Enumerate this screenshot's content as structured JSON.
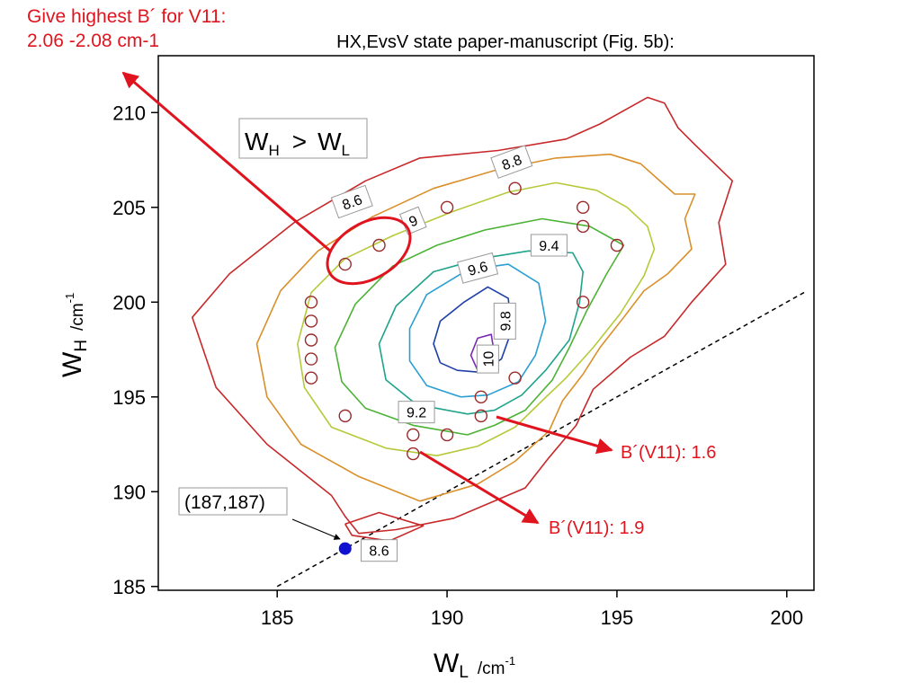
{
  "chart_data": {
    "type": "contour",
    "title": "HX,EvsV state paper-manuscript (Fig. 5b):",
    "xlim": [
      181.5,
      200.8
    ],
    "ylim": [
      184.8,
      213.0
    ],
    "x_axis": {
      "label_main": "W",
      "label_sub": "L",
      "unit": "/cm",
      "unit_exp": "-1",
      "ticks": [
        {
          "value": 185,
          "label": "185"
        },
        {
          "value": 190,
          "label": "190"
        },
        {
          "value": 195,
          "label": "195"
        },
        {
          "value": 200,
          "label": "200"
        }
      ]
    },
    "y_axis": {
      "label_main": "W",
      "label_sub": "H",
      "unit": "/cm",
      "unit_exp": "-1",
      "ticks": [
        {
          "value": 185,
          "label": "185"
        },
        {
          "value": 190,
          "label": "190"
        },
        {
          "value": 195,
          "label": "195"
        },
        {
          "value": 200,
          "label": "200"
        },
        {
          "value": 205,
          "label": "205"
        },
        {
          "value": 210,
          "label": "210"
        }
      ]
    },
    "contours": [
      {
        "level": 8.6,
        "color": "#c8282a",
        "points": [
          [
            186.6,
            189.8
          ],
          [
            184.7,
            192.5
          ],
          [
            183.2,
            195.5
          ],
          [
            182.5,
            199.2
          ],
          [
            183.6,
            201.5
          ],
          [
            185.5,
            204.2
          ],
          [
            187.6,
            206.4
          ],
          [
            189.2,
            207.6
          ],
          [
            191.5,
            208.0
          ],
          [
            193.5,
            208.6
          ],
          [
            194.5,
            209.4
          ],
          [
            195.9,
            210.8
          ],
          [
            196.4,
            210.5
          ],
          [
            196.8,
            209.2
          ],
          [
            197.3,
            208.3
          ],
          [
            198.4,
            206.4
          ],
          [
            198.0,
            204.2
          ],
          [
            198.2,
            202.0
          ],
          [
            197.2,
            200.0
          ],
          [
            196.4,
            198.2
          ],
          [
            195.4,
            197.1
          ],
          [
            194.3,
            195.4
          ],
          [
            193.8,
            193.5
          ],
          [
            193.0,
            191.8
          ],
          [
            192.3,
            190.2
          ],
          [
            190.2,
            188.6
          ],
          [
            188.5,
            188.0
          ],
          [
            187.4,
            187.8
          ],
          [
            187.0,
            188.7
          ],
          [
            186.6,
            189.8
          ]
        ]
      },
      {
        "level": 8.6,
        "color": "#c8282a",
        "points": [
          [
            187.0,
            188.3
          ],
          [
            188.0,
            188.9
          ],
          [
            189.3,
            188.2
          ],
          [
            188.3,
            187.4
          ],
          [
            187.2,
            187.7
          ],
          [
            187.0,
            188.3
          ]
        ]
      },
      {
        "level": 8.8,
        "color": "#d9902a",
        "points": [
          [
            189.2,
            189.5
          ],
          [
            187.4,
            190.8
          ],
          [
            185.7,
            192.5
          ],
          [
            184.7,
            195.0
          ],
          [
            184.4,
            197.8
          ],
          [
            185.1,
            200.6
          ],
          [
            186.2,
            202.7
          ],
          [
            187.8,
            204.5
          ],
          [
            189.6,
            206.0
          ],
          [
            191.5,
            207.0
          ],
          [
            193.2,
            207.6
          ],
          [
            194.8,
            207.8
          ],
          [
            195.7,
            207.3
          ],
          [
            196.2,
            206.5
          ],
          [
            196.7,
            205.7
          ],
          [
            197.3,
            205.7
          ],
          [
            197.0,
            204.4
          ],
          [
            197.2,
            202.8
          ],
          [
            196.5,
            201.5
          ],
          [
            195.8,
            200.6
          ],
          [
            195.2,
            199.2
          ],
          [
            194.5,
            197.6
          ],
          [
            194.0,
            196.2
          ],
          [
            193.4,
            194.8
          ],
          [
            193.0,
            193.2
          ],
          [
            192.0,
            191.6
          ],
          [
            190.9,
            190.4
          ],
          [
            189.2,
            189.5
          ]
        ]
      },
      {
        "level": 9.0,
        "color": "#b7c93a",
        "points": [
          [
            189.7,
            191.9
          ],
          [
            188.2,
            192.3
          ],
          [
            186.6,
            193.4
          ],
          [
            185.8,
            195.5
          ],
          [
            185.6,
            197.8
          ],
          [
            186.0,
            200.5
          ],
          [
            187.0,
            202.3
          ],
          [
            188.4,
            203.5
          ],
          [
            190.2,
            204.8
          ],
          [
            191.8,
            205.8
          ],
          [
            193.2,
            206.3
          ],
          [
            194.4,
            205.9
          ],
          [
            195.3,
            205.0
          ],
          [
            195.9,
            204.0
          ],
          [
            196.1,
            202.8
          ],
          [
            195.8,
            201.4
          ],
          [
            195.1,
            199.4
          ],
          [
            194.3,
            197.6
          ],
          [
            193.5,
            196.0
          ],
          [
            192.8,
            194.8
          ],
          [
            192.0,
            193.4
          ],
          [
            190.9,
            192.4
          ],
          [
            189.7,
            191.9
          ]
        ]
      },
      {
        "level": 9.2,
        "color": "#4cb236",
        "points": [
          [
            190.6,
            193.0
          ],
          [
            189.0,
            193.5
          ],
          [
            187.6,
            194.4
          ],
          [
            186.9,
            195.8
          ],
          [
            186.7,
            197.6
          ],
          [
            187.3,
            199.9
          ],
          [
            188.4,
            201.9
          ],
          [
            189.7,
            203.0
          ],
          [
            191.1,
            203.8
          ],
          [
            192.8,
            204.4
          ],
          [
            194.2,
            204.0
          ],
          [
            195.2,
            203.0
          ],
          [
            194.7,
            201.5
          ],
          [
            194.1,
            199.5
          ],
          [
            193.6,
            197.6
          ],
          [
            193.1,
            195.9
          ],
          [
            192.3,
            194.3
          ],
          [
            191.4,
            193.5
          ],
          [
            190.6,
            193.0
          ]
        ]
      },
      {
        "level": 9.4,
        "color": "#1fa38b",
        "points": [
          [
            190.6,
            194.1
          ],
          [
            189.1,
            194.6
          ],
          [
            188.2,
            195.9
          ],
          [
            188.0,
            197.8
          ],
          [
            188.5,
            199.8
          ],
          [
            189.6,
            201.6
          ],
          [
            191.0,
            202.3
          ],
          [
            192.4,
            202.7
          ],
          [
            193.7,
            202.6
          ],
          [
            194.0,
            201.6
          ],
          [
            193.9,
            200.0
          ],
          [
            193.6,
            198.0
          ],
          [
            192.9,
            196.4
          ],
          [
            192.2,
            195.1
          ],
          [
            191.4,
            194.3
          ],
          [
            190.6,
            194.1
          ]
        ]
      },
      {
        "level": 9.6,
        "color": "#2b9fd2",
        "points": [
          [
            190.4,
            195.0
          ],
          [
            189.4,
            195.6
          ],
          [
            188.9,
            196.9
          ],
          [
            188.9,
            198.6
          ],
          [
            189.4,
            200.4
          ],
          [
            190.6,
            201.7
          ],
          [
            191.8,
            202.0
          ],
          [
            192.7,
            201.0
          ],
          [
            192.9,
            199.0
          ],
          [
            192.6,
            197.2
          ],
          [
            192.1,
            195.8
          ],
          [
            191.2,
            195.1
          ],
          [
            190.4,
            195.0
          ]
        ]
      },
      {
        "level": 9.8,
        "color": "#1e3fa8",
        "points": [
          [
            189.8,
            196.8
          ],
          [
            189.6,
            197.8
          ],
          [
            189.8,
            199.0
          ],
          [
            190.5,
            200.0
          ],
          [
            191.2,
            200.8
          ],
          [
            191.8,
            200.2
          ],
          [
            191.9,
            198.5
          ],
          [
            191.6,
            197.0
          ],
          [
            191.0,
            196.3
          ],
          [
            190.3,
            196.4
          ],
          [
            189.8,
            196.8
          ]
        ]
      },
      {
        "level": 10.0,
        "color": "#7a2bb4",
        "points": [
          [
            190.9,
            196.4
          ],
          [
            190.7,
            197.2
          ],
          [
            190.9,
            198.1
          ],
          [
            191.3,
            198.3
          ],
          [
            191.4,
            197.2
          ],
          [
            191.2,
            196.5
          ],
          [
            190.9,
            196.4
          ]
        ]
      }
    ],
    "contour_labels": [
      {
        "text": "8.8",
        "x": 191.9,
        "y": 207.4,
        "angle": -20
      },
      {
        "text": "8.6",
        "x": 187.2,
        "y": 205.3,
        "angle": -20
      },
      {
        "text": "9",
        "x": 189.0,
        "y": 204.3,
        "angle": -22
      },
      {
        "text": "9.4",
        "x": 193.0,
        "y": 203.0,
        "angle": 0
      },
      {
        "text": "9.6",
        "x": 190.9,
        "y": 201.8,
        "angle": -15
      },
      {
        "text": "9.8",
        "x": 191.7,
        "y": 199.0,
        "angle": -90
      },
      {
        "text": "10",
        "x": 191.2,
        "y": 197.0,
        "angle": -90
      },
      {
        "text": "9.2",
        "x": 189.1,
        "y": 194.2,
        "angle": 0
      },
      {
        "text": "8.6",
        "x": 188.0,
        "y": 186.9,
        "angle": 0
      }
    ],
    "scatter": [
      [
        187,
        202
      ],
      [
        188,
        203
      ],
      [
        190,
        205
      ],
      [
        192,
        206
      ],
      [
        194,
        205
      ],
      [
        194,
        204
      ],
      [
        195,
        203
      ],
      [
        194,
        200
      ],
      [
        186,
        200
      ],
      [
        186,
        199
      ],
      [
        186,
        198
      ],
      [
        186,
        197
      ],
      [
        186,
        196
      ],
      [
        187,
        194
      ],
      [
        189,
        193
      ],
      [
        189,
        192
      ],
      [
        190,
        193
      ],
      [
        191,
        195
      ],
      [
        191,
        194
      ],
      [
        192,
        196
      ]
    ],
    "reference_point": {
      "x": 187,
      "y": 187,
      "label": "(187,187)"
    },
    "diagonal_line": {
      "from": [
        185,
        185
      ],
      "to": [
        200.6,
        200.6
      ]
    },
    "inset_label": {
      "main1": "W",
      "sub1": "H",
      "op": ">",
      "main2": "W",
      "sub2": "L"
    },
    "annotations": {
      "note_line1": "Give highest B´ for V11:",
      "note_line2": "2.06 -2.08 cm-1",
      "arrow1_label": "B´(V11): 1.6",
      "arrow2_label": "B´(V11): 1.9"
    }
  },
  "colors": {
    "scatter": "#9a2a2a",
    "reference_point": "#1010d0",
    "annotation_red": "#e0141e"
  }
}
